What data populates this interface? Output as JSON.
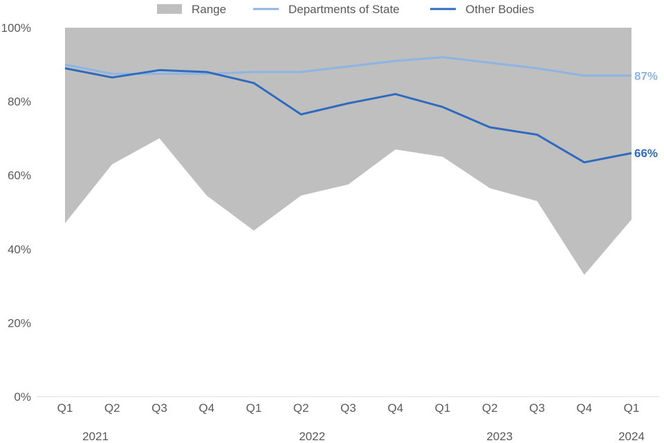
{
  "chart_data": {
    "type": "line",
    "quarters": [
      "Q1",
      "Q2",
      "Q3",
      "Q4",
      "Q1",
      "Q2",
      "Q3",
      "Q4",
      "Q1",
      "Q2",
      "Q3",
      "Q4",
      "Q1"
    ],
    "years": [
      {
        "label": "2021",
        "index": 0
      },
      {
        "label": "2022",
        "index": 5
      },
      {
        "label": "2023",
        "index": 9
      },
      {
        "label": "2024",
        "index": 12
      }
    ],
    "ylim": [
      0,
      100
    ],
    "yticks": [
      {
        "value": 0,
        "label": "0%"
      },
      {
        "value": 20,
        "label": "20%"
      },
      {
        "value": 40,
        "label": "40%"
      },
      {
        "value": 60,
        "label": "60%"
      },
      {
        "value": 80,
        "label": "80%"
      },
      {
        "value": 100,
        "label": "100%"
      }
    ],
    "legend_position": "top",
    "range": {
      "name": "Range",
      "color": "#bfbfbf",
      "upper": [
        100,
        100,
        100,
        100,
        100,
        100,
        100,
        100,
        100,
        100,
        100,
        100,
        100
      ],
      "lower": [
        47,
        63,
        70,
        54.5,
        45,
        54.5,
        57.5,
        67,
        65,
        56.5,
        53,
        33,
        48
      ]
    },
    "series": [
      {
        "name": "Departments of State",
        "color": "#8db4e2",
        "values": [
          90,
          87.5,
          87.5,
          87.5,
          88,
          88,
          89.5,
          91,
          92,
          90.5,
          89,
          87,
          87
        ],
        "end_label": "87%"
      },
      {
        "name": "Other Bodies",
        "color": "#2e6bbf",
        "values": [
          89,
          86.5,
          88.5,
          88,
          85,
          76.5,
          79.5,
          82,
          78.5,
          73,
          71,
          63.5,
          66
        ],
        "end_label": "66%"
      }
    ]
  }
}
